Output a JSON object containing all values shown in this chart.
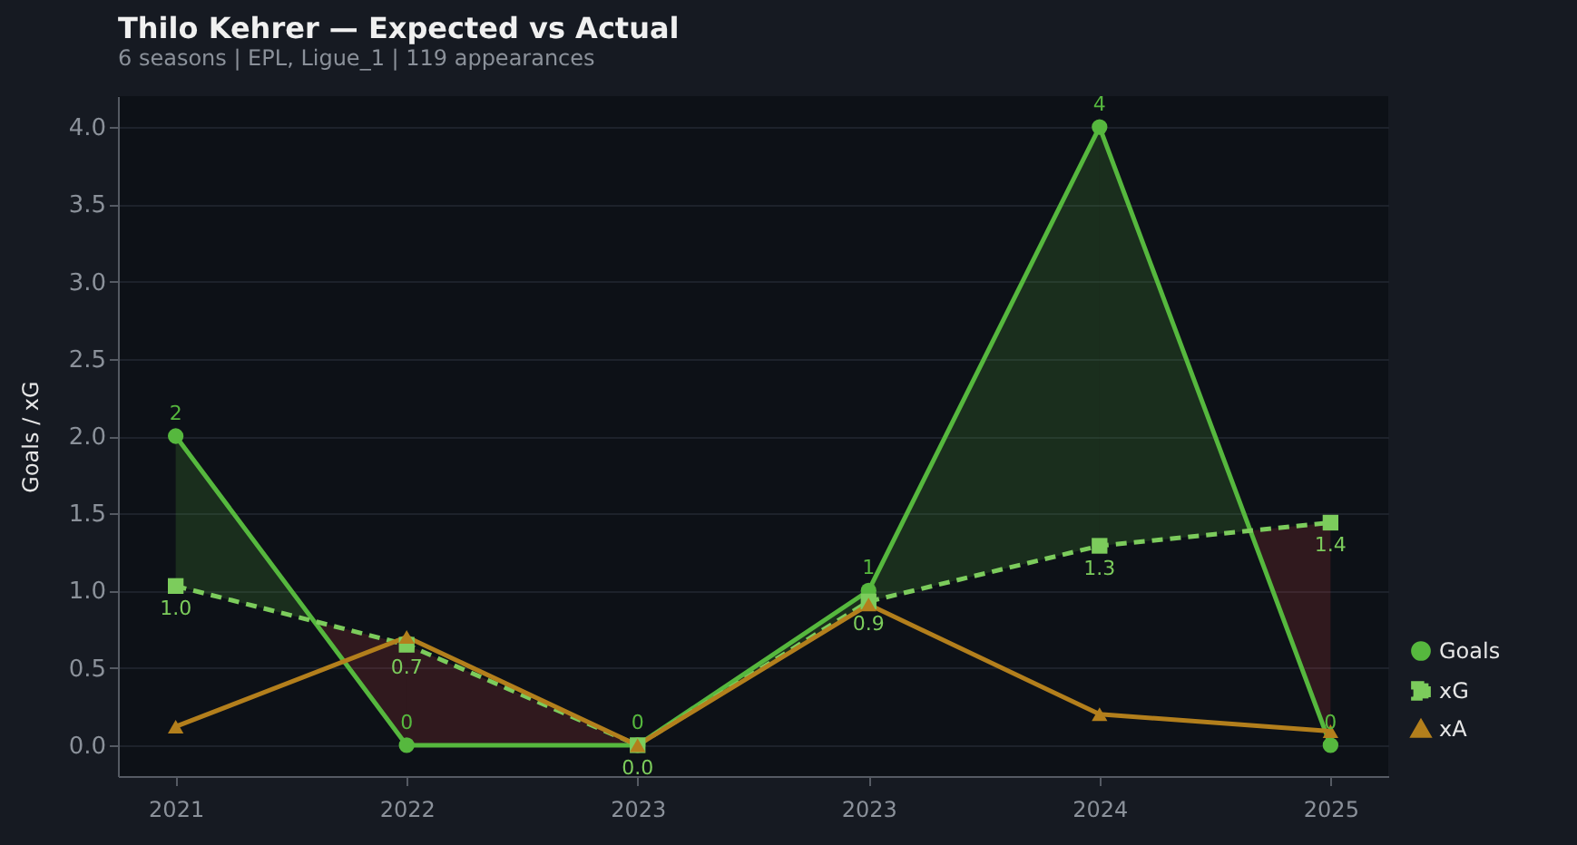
{
  "chart_data": {
    "type": "line",
    "title": "Thilo Kehrer — Expected vs Actual",
    "subtitle": "6 seasons | EPL, Ligue_1 | 119 appearances",
    "ylabel": "Goals / xG",
    "categories": [
      "2021",
      "2022",
      "2023",
      "2023",
      "2024",
      "2025"
    ],
    "series": [
      {
        "name": "Goals",
        "color": "#56b83e",
        "values": [
          2,
          0,
          0,
          1,
          4,
          0
        ],
        "marker": "circle",
        "line_style": "solid",
        "value_labels": [
          "2",
          "0",
          "0",
          "1",
          "4",
          "0"
        ]
      },
      {
        "name": "xG",
        "color": "#7ccc5c",
        "values": [
          1.03,
          0.65,
          0.0,
          0.93,
          1.29,
          1.44
        ],
        "marker": "square",
        "line_style": "dashed",
        "value_labels": [
          "1.0",
          "0.7",
          "0.0",
          "0.9",
          "1.3",
          "1.4"
        ]
      },
      {
        "name": "xA",
        "color": "#b37f1c",
        "values": [
          0.12,
          0.7,
          0.0,
          0.91,
          0.2,
          0.09
        ],
        "marker": "triangle",
        "line_style": "solid"
      }
    ],
    "ylim": [
      -0.2,
      4.2
    ],
    "yticks": [
      {
        "value": 0,
        "label": "0.0"
      },
      {
        "value": 0.5,
        "label": "0.5"
      },
      {
        "value": 1,
        "label": "1.0"
      },
      {
        "value": 1.5,
        "label": "1.5"
      },
      {
        "value": 2,
        "label": "2.0"
      },
      {
        "value": 2.5,
        "label": "2.5"
      },
      {
        "value": 3,
        "label": "3.0"
      },
      {
        "value": 3.5,
        "label": "3.5"
      },
      {
        "value": 4,
        "label": "4.0"
      }
    ],
    "grid": "y",
    "legend": "bottom right"
  }
}
